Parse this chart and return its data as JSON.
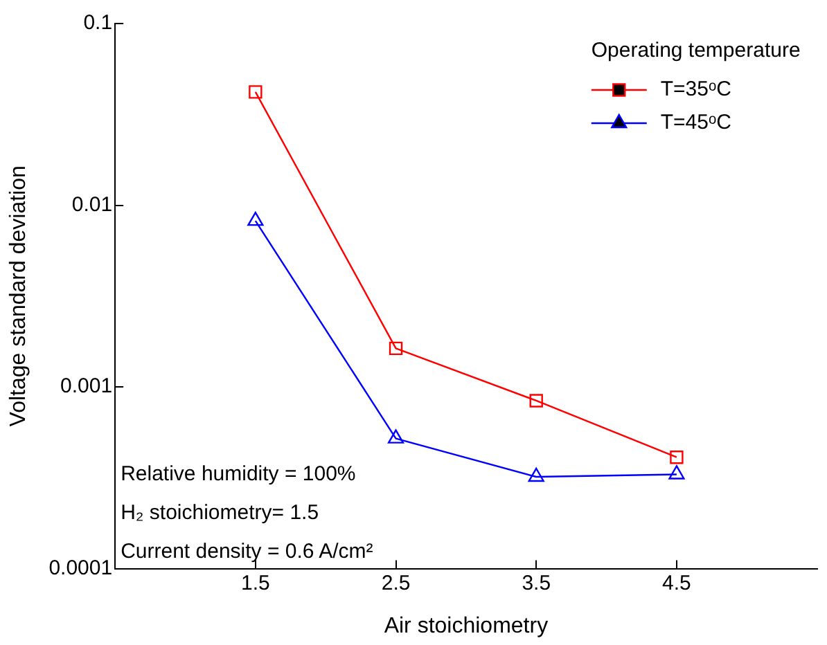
{
  "chart_data": {
    "type": "line",
    "xlabel": "Air stoichiometry",
    "ylabel": "Voltage standard deviation",
    "legend_title": "Operating temperature",
    "x": [
      1.5,
      2.5,
      3.5,
      4.5
    ],
    "series": [
      {
        "name": "T=35ᵒC",
        "color": "#ff0000",
        "marker": "square",
        "values": [
          0.042,
          0.00163,
          0.00084,
          0.00041
        ]
      },
      {
        "name": "T=45ᵒC",
        "color": "#0000ff",
        "marker": "triangle",
        "values": [
          0.0082,
          0.00052,
          0.00032,
          0.00033
        ]
      }
    ],
    "xlim": [
      0.5,
      5.5
    ],
    "xticks": [
      1.5,
      2.5,
      3.5,
      4.5
    ],
    "ylim": [
      0.0001,
      0.1
    ],
    "yticks": [
      0.0001,
      0.001,
      0.01,
      0.1
    ],
    "log": "y",
    "grid": false,
    "legend": "top right",
    "line_style": "solid",
    "annotations": [
      "Relative humidity = 100%",
      "H₂ stoichiometry= 1.5",
      "Current density = 0.6 A/cm²"
    ]
  }
}
